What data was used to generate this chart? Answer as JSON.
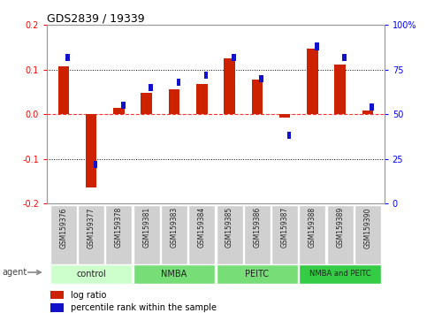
{
  "title": "GDS2839 / 19339",
  "samples": [
    "GSM159376",
    "GSM159377",
    "GSM159378",
    "GSM159381",
    "GSM159383",
    "GSM159384",
    "GSM159385",
    "GSM159386",
    "GSM159387",
    "GSM159388",
    "GSM159389",
    "GSM159390"
  ],
  "log_ratio": [
    0.107,
    -0.165,
    0.015,
    0.048,
    0.055,
    0.068,
    0.125,
    0.078,
    -0.008,
    0.148,
    0.112,
    0.008
  ],
  "percentile": [
    82,
    22,
    55,
    65,
    68,
    72,
    82,
    70,
    38,
    88,
    82,
    54
  ],
  "group_data": [
    {
      "label": "control",
      "start": 0,
      "end": 2,
      "color": "#ccffcc"
    },
    {
      "label": "NMBA",
      "start": 3,
      "end": 5,
      "color": "#77dd77"
    },
    {
      "label": "PEITC",
      "start": 6,
      "end": 8,
      "color": "#77dd77"
    },
    {
      "label": "NMBA and PEITC",
      "start": 9,
      "end": 11,
      "color": "#33cc44"
    }
  ],
  "bar_color_red": "#cc2200",
  "bar_color_blue": "#1111cc",
  "ylim_left": [
    -0.2,
    0.2
  ],
  "ylim_right": [
    0,
    100
  ],
  "yticks_left": [
    -0.2,
    -0.1,
    0.0,
    0.1,
    0.2
  ],
  "yticks_right": [
    0,
    25,
    50,
    75,
    100
  ],
  "legend_items": [
    "log ratio",
    "percentile rank within the sample"
  ],
  "agent_label": "agent"
}
